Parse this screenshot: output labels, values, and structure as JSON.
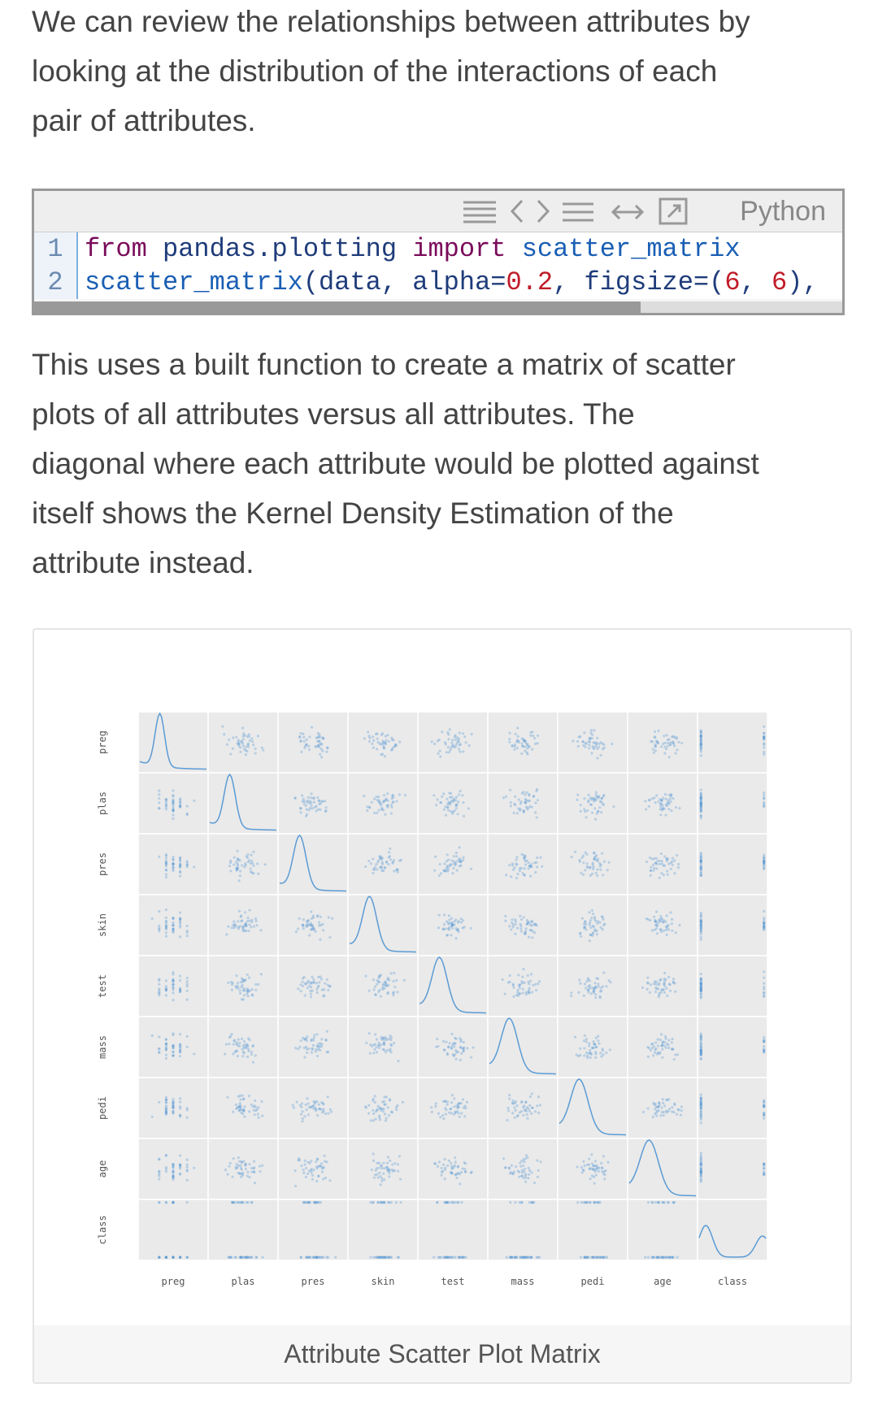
{
  "intro": [
    "We can review the relationships between attributes by",
    "looking at the distribution of the interactions of each",
    "pair of attributes."
  ],
  "code": {
    "language": "Python",
    "lines": [
      {
        "number": 1,
        "tokens": [
          {
            "text": "from",
            "color": "#7a0b5a"
          },
          {
            "text": " pandas.plotting ",
            "color": "#1f3c7a"
          },
          {
            "text": "import",
            "color": "#7a0b5a"
          },
          {
            "text": " scatter_matrix",
            "color": "#1a5fb4"
          }
        ]
      },
      {
        "number": 2,
        "tokens": [
          {
            "text": "scatter_matrix",
            "color": "#1a5fb4"
          },
          {
            "text": "(data, alpha=",
            "color": "#1f3c7a"
          },
          {
            "text": "0.2",
            "color": "#c01c28"
          },
          {
            "text": ", figsize=(",
            "color": "#1f3c7a"
          },
          {
            "text": "6",
            "color": "#c01c28"
          },
          {
            "text": ", ",
            "color": "#1f3c7a"
          },
          {
            "text": "6",
            "color": "#c01c28"
          },
          {
            "text": "),",
            "color": "#1f3c7a"
          }
        ]
      }
    ]
  },
  "body": [
    "This uses a built function to create a matrix of scatter",
    "plots of all attributes versus all attributes. The",
    "diagonal where each attribute would be plotted against",
    "itself shows the Kernel Density Estimation of the",
    "attribute instead."
  ],
  "figure": {
    "attributes": [
      "preg",
      "plas",
      "pres",
      "skin",
      "test",
      "mass",
      "pedi",
      "age",
      "class"
    ],
    "caption": "Attribute Scatter Plot Matrix"
  }
}
